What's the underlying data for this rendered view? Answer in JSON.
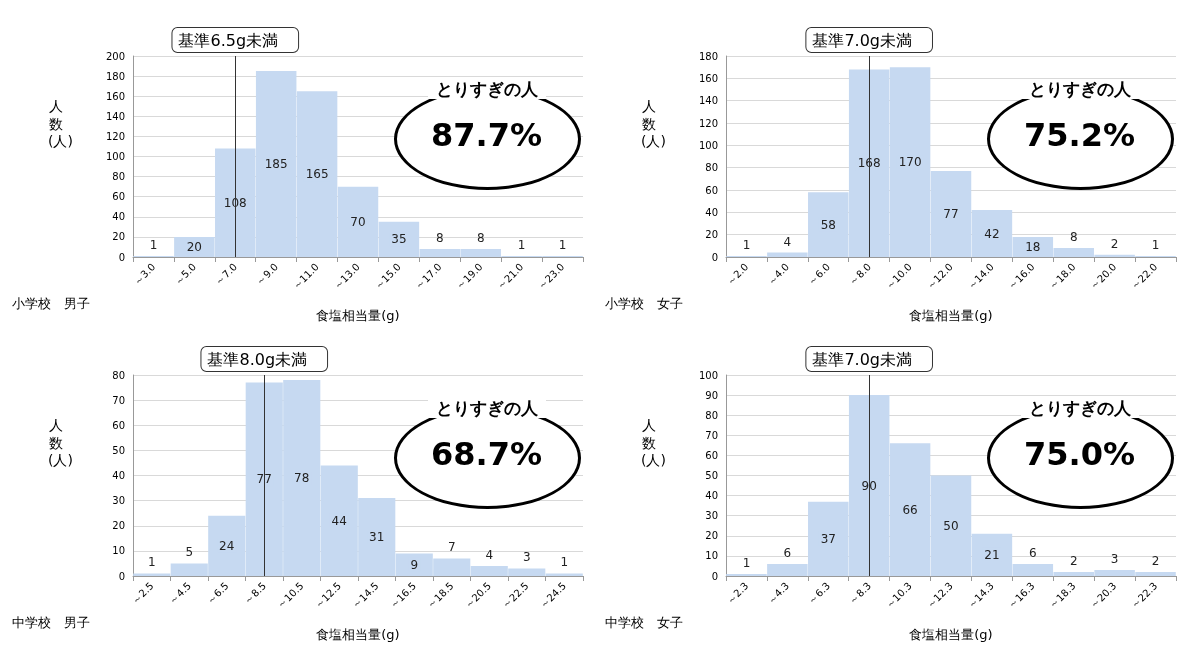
{
  "chart_data": [
    {
      "type": "bar",
      "title": "小学校　男子",
      "xlabel": "食塩相当量(g)",
      "ylabel": "人数(人)",
      "categories": [
        "～3.0",
        "～5.0",
        "～7.0",
        "～9.0",
        "～11.0",
        "～13.0",
        "～15.0",
        "～17.0",
        "～19.0",
        "～21.0",
        "～23.0"
      ],
      "values": [
        1,
        20,
        108,
        185,
        165,
        70,
        35,
        8,
        8,
        1,
        1
      ],
      "color": "#c6d9f1",
      "ylim": [
        0,
        200
      ],
      "yticks": [
        0,
        20,
        40,
        60,
        80,
        100,
        120,
        140,
        160,
        180,
        200
      ],
      "grid": "y",
      "data_labels": true,
      "annotations": [
        {
          "text": "基準6.5g未満",
          "x": "～7.0"
        },
        "とりすぎの人",
        "87.7%"
      ]
    },
    {
      "type": "bar",
      "title": "小学校　女子",
      "xlabel": "食塩相当量(g)",
      "ylabel": "人数(人)",
      "categories": [
        "～2.0",
        "～4.0",
        "～6.0",
        "～8.0",
        "～10.0",
        "～12.0",
        "～14.0",
        "～16.0",
        "～18.0",
        "～20.0",
        "～22.0"
      ],
      "values": [
        1,
        4,
        58,
        168,
        170,
        77,
        42,
        18,
        8,
        2,
        1
      ],
      "color": "#c6d9f1",
      "ylim": [
        0,
        180
      ],
      "yticks": [
        0,
        20,
        40,
        60,
        80,
        100,
        120,
        140,
        160,
        180
      ],
      "grid": "y",
      "data_labels": true,
      "annotations": [
        {
          "text": "基準7.0g未満",
          "x": "～8.0"
        },
        "とりすぎの人",
        "75.2%"
      ]
    },
    {
      "type": "bar",
      "title": "中学校　男子",
      "xlabel": "食塩相当量(g)",
      "ylabel": "人数(人)",
      "categories": [
        "～2.5",
        "～4.5",
        "～6.5",
        "～8.5",
        "～10.5",
        "～12.5",
        "～14.5",
        "～16.5",
        "～18.5",
        "～20.5",
        "～22.5",
        "～24.5"
      ],
      "values": [
        1,
        5,
        24,
        77,
        78,
        44,
        31,
        9,
        7,
        4,
        3,
        1
      ],
      "color": "#c6d9f1",
      "ylim": [
        0,
        80
      ],
      "yticks": [
        0,
        10,
        20,
        30,
        40,
        50,
        60,
        70,
        80
      ],
      "grid": "y",
      "data_labels": true,
      "annotations": [
        {
          "text": "基準8.0g未満",
          "x": "～8.5"
        },
        "とりすぎの人",
        "68.7%"
      ]
    },
    {
      "type": "bar",
      "title": "中学校　女子",
      "xlabel": "食塩相当量(g)",
      "ylabel": "人数(人)",
      "categories": [
        "～2.3",
        "～4.3",
        "～6.3",
        "～8.3",
        "～10.3",
        "～12.3",
        "～14.3",
        "～16.3",
        "～18.3",
        "～20.3",
        "～22.3"
      ],
      "values": [
        1,
        6,
        37,
        90,
        66,
        50,
        21,
        6,
        2,
        3,
        2
      ],
      "color": "#c6d9f1",
      "ylim": [
        0,
        100
      ],
      "yticks": [
        0,
        10,
        20,
        30,
        40,
        50,
        60,
        70,
        80,
        90,
        100
      ],
      "grid": "y",
      "data_labels": true,
      "annotations": [
        {
          "text": "基準7.0g未満",
          "x": "～8.3"
        },
        "とりすぎの人",
        "75.0%"
      ]
    }
  ]
}
